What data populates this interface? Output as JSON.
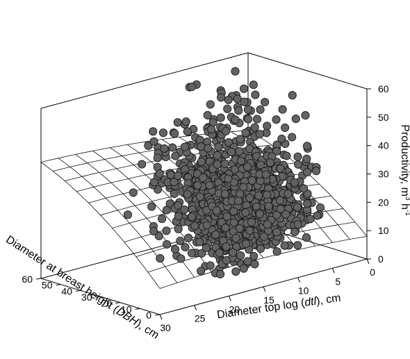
{
  "chart_data": {
    "type": "scatter",
    "title": "",
    "axes": {
      "x": {
        "label_parts": [
          "Diameter top log (",
          "dtl",
          "), cm"
        ],
        "ticks": [
          "30",
          "25",
          "20",
          "15",
          "10",
          "5",
          "0"
        ],
        "range": [
          0,
          30
        ]
      },
      "y": {
        "label_parts": [
          "Diameter at breast height (",
          "DBH",
          "), cm"
        ],
        "ticks": [
          "0",
          "10",
          "20",
          "30",
          "40",
          "50",
          "60"
        ],
        "range": [
          0,
          60
        ]
      },
      "z": {
        "label_parts": [
          "Productivity, m",
          "3",
          " h",
          "-1"
        ],
        "ticks": [
          "0",
          "10",
          "20",
          "30",
          "40",
          "50",
          "60"
        ],
        "range": [
          0,
          60
        ]
      }
    },
    "surface": {
      "shown": true,
      "style": "wireframe"
    },
    "grid": false,
    "legend": "none",
    "series": [
      {
        "type": "scatter",
        "marker_color": "#636363",
        "points_approx": 1200
      }
    ]
  }
}
